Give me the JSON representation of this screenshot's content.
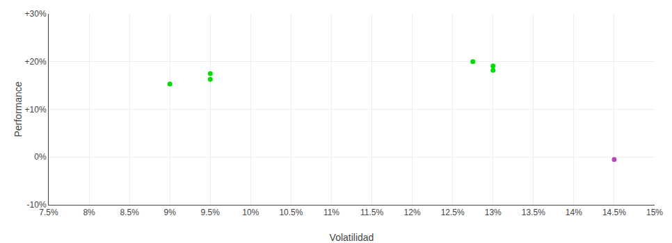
{
  "chart_data": {
    "type": "scatter",
    "xlabel": "Volatilidad",
    "ylabel": "Performance",
    "xlim": [
      0.075,
      0.15
    ],
    "ylim": [
      -0.1,
      0.3
    ],
    "xticks": [
      {
        "value": 0.075,
        "label": "7.5%"
      },
      {
        "value": 0.08,
        "label": "8%"
      },
      {
        "value": 0.085,
        "label": "8.5%"
      },
      {
        "value": 0.09,
        "label": "9%"
      },
      {
        "value": 0.095,
        "label": "9.5%"
      },
      {
        "value": 0.1,
        "label": "10%"
      },
      {
        "value": 0.105,
        "label": "10.5%"
      },
      {
        "value": 0.11,
        "label": "11%"
      },
      {
        "value": 0.115,
        "label": "11.5%"
      },
      {
        "value": 0.12,
        "label": "12%"
      },
      {
        "value": 0.125,
        "label": "12.5%"
      },
      {
        "value": 0.13,
        "label": "13%"
      },
      {
        "value": 0.135,
        "label": "13.5%"
      },
      {
        "value": 0.14,
        "label": "14%"
      },
      {
        "value": 0.145,
        "label": "14.5%"
      },
      {
        "value": 0.15,
        "label": "15%"
      }
    ],
    "yticks": [
      {
        "value": -0.1,
        "label": "-10%"
      },
      {
        "value": 0.0,
        "label": "0%"
      },
      {
        "value": 0.1,
        "label": "+10%"
      },
      {
        "value": 0.2,
        "label": "+20%"
      },
      {
        "value": 0.3,
        "label": "+30%"
      }
    ],
    "grid": true,
    "series": [
      {
        "color": "#00dd00",
        "marker": "circle",
        "x": [
          0.09,
          0.095,
          0.095,
          0.1275,
          0.13,
          0.13
        ],
        "values": [
          0.153,
          0.175,
          0.163,
          0.2,
          0.191,
          0.182
        ]
      },
      {
        "color": "#bb44bb",
        "marker": "circle",
        "x": [
          0.145
        ],
        "values": [
          -0.005
        ]
      }
    ]
  }
}
